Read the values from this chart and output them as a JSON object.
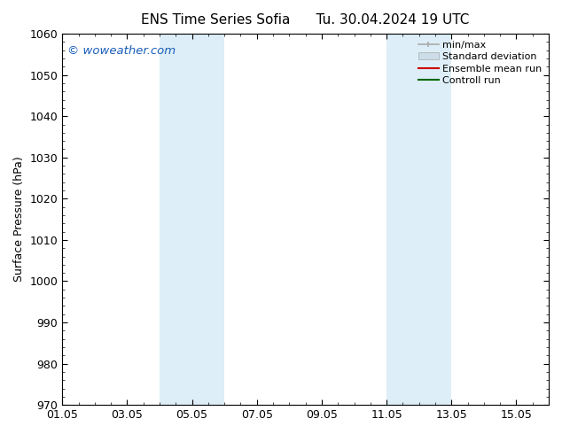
{
  "title_left": "ENS Time Series Sofia",
  "title_right": "Tu. 30.04.2024 19 UTC",
  "ylabel": "Surface Pressure (hPa)",
  "ylim": [
    970,
    1060
  ],
  "yticks": [
    970,
    980,
    990,
    1000,
    1010,
    1020,
    1030,
    1040,
    1050,
    1060
  ],
  "xlim_start": 0.0,
  "xlim_end": 15.0,
  "xtick_labels": [
    "01.05",
    "03.05",
    "05.05",
    "07.05",
    "09.05",
    "11.05",
    "13.05",
    "15.05"
  ],
  "xtick_positions": [
    0,
    2,
    4,
    6,
    8,
    10,
    12,
    14
  ],
  "shaded_bands": [
    {
      "xmin": 3.0,
      "xmax": 5.0,
      "color": "#ddeef8"
    },
    {
      "xmin": 10.0,
      "xmax": 12.0,
      "color": "#ddeef8"
    }
  ],
  "watermark_text": "© woweather.com",
  "watermark_color": "#1a5eb8",
  "legend_items": [
    {
      "label": "min/max",
      "color": "#aaaaaa",
      "lw": 1.2
    },
    {
      "label": "Standard deviation",
      "color": "#ccdde8",
      "lw": 7
    },
    {
      "label": "Ensemble mean run",
      "color": "#cc0000",
      "lw": 1.5
    },
    {
      "label": "Controll run",
      "color": "#006600",
      "lw": 1.5
    }
  ],
  "bg_color": "#ffffff",
  "spine_color": "#000000",
  "font_size": 9,
  "title_font_size": 11
}
